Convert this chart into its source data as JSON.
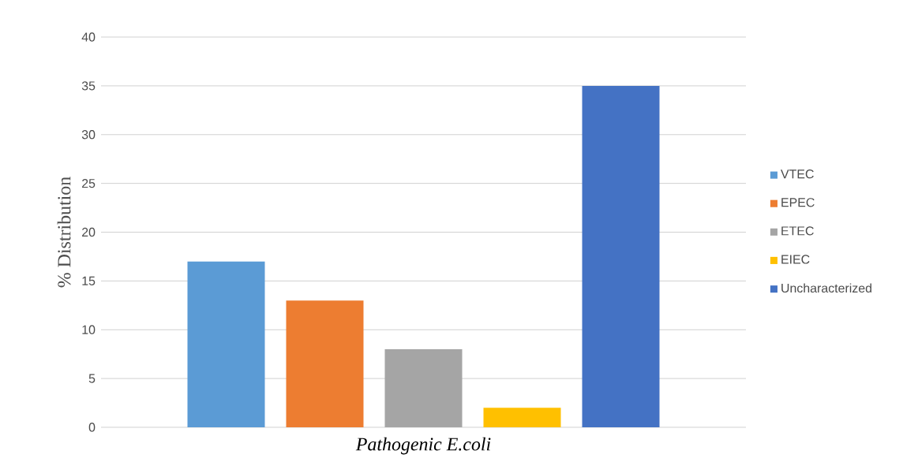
{
  "chart_data": {
    "type": "bar",
    "xlabel": "*Pathogenic E.coli*",
    "ylabel": "% Distribution",
    "categories": [
      null
    ],
    "series": [
      {
        "name": "VTEC",
        "color": "#5b9bd5",
        "values": [
          17
        ]
      },
      {
        "name": "EPEC",
        "color": "#ed7d31",
        "values": [
          13
        ]
      },
      {
        "name": "ETEC",
        "color": "#a5a5a5",
        "values": [
          8
        ]
      },
      {
        "name": "EIEC",
        "color": "#ffc000",
        "values": [
          2
        ]
      },
      {
        "name": "Uncharacterized",
        "color": "#4472c4",
        "values": [
          35
        ]
      }
    ],
    "ylim": [
      0,
      40
    ],
    "yticks": [
      0,
      5,
      10,
      15,
      20,
      25,
      30,
      35,
      40
    ],
    "grid": "y",
    "legend": "right"
  }
}
